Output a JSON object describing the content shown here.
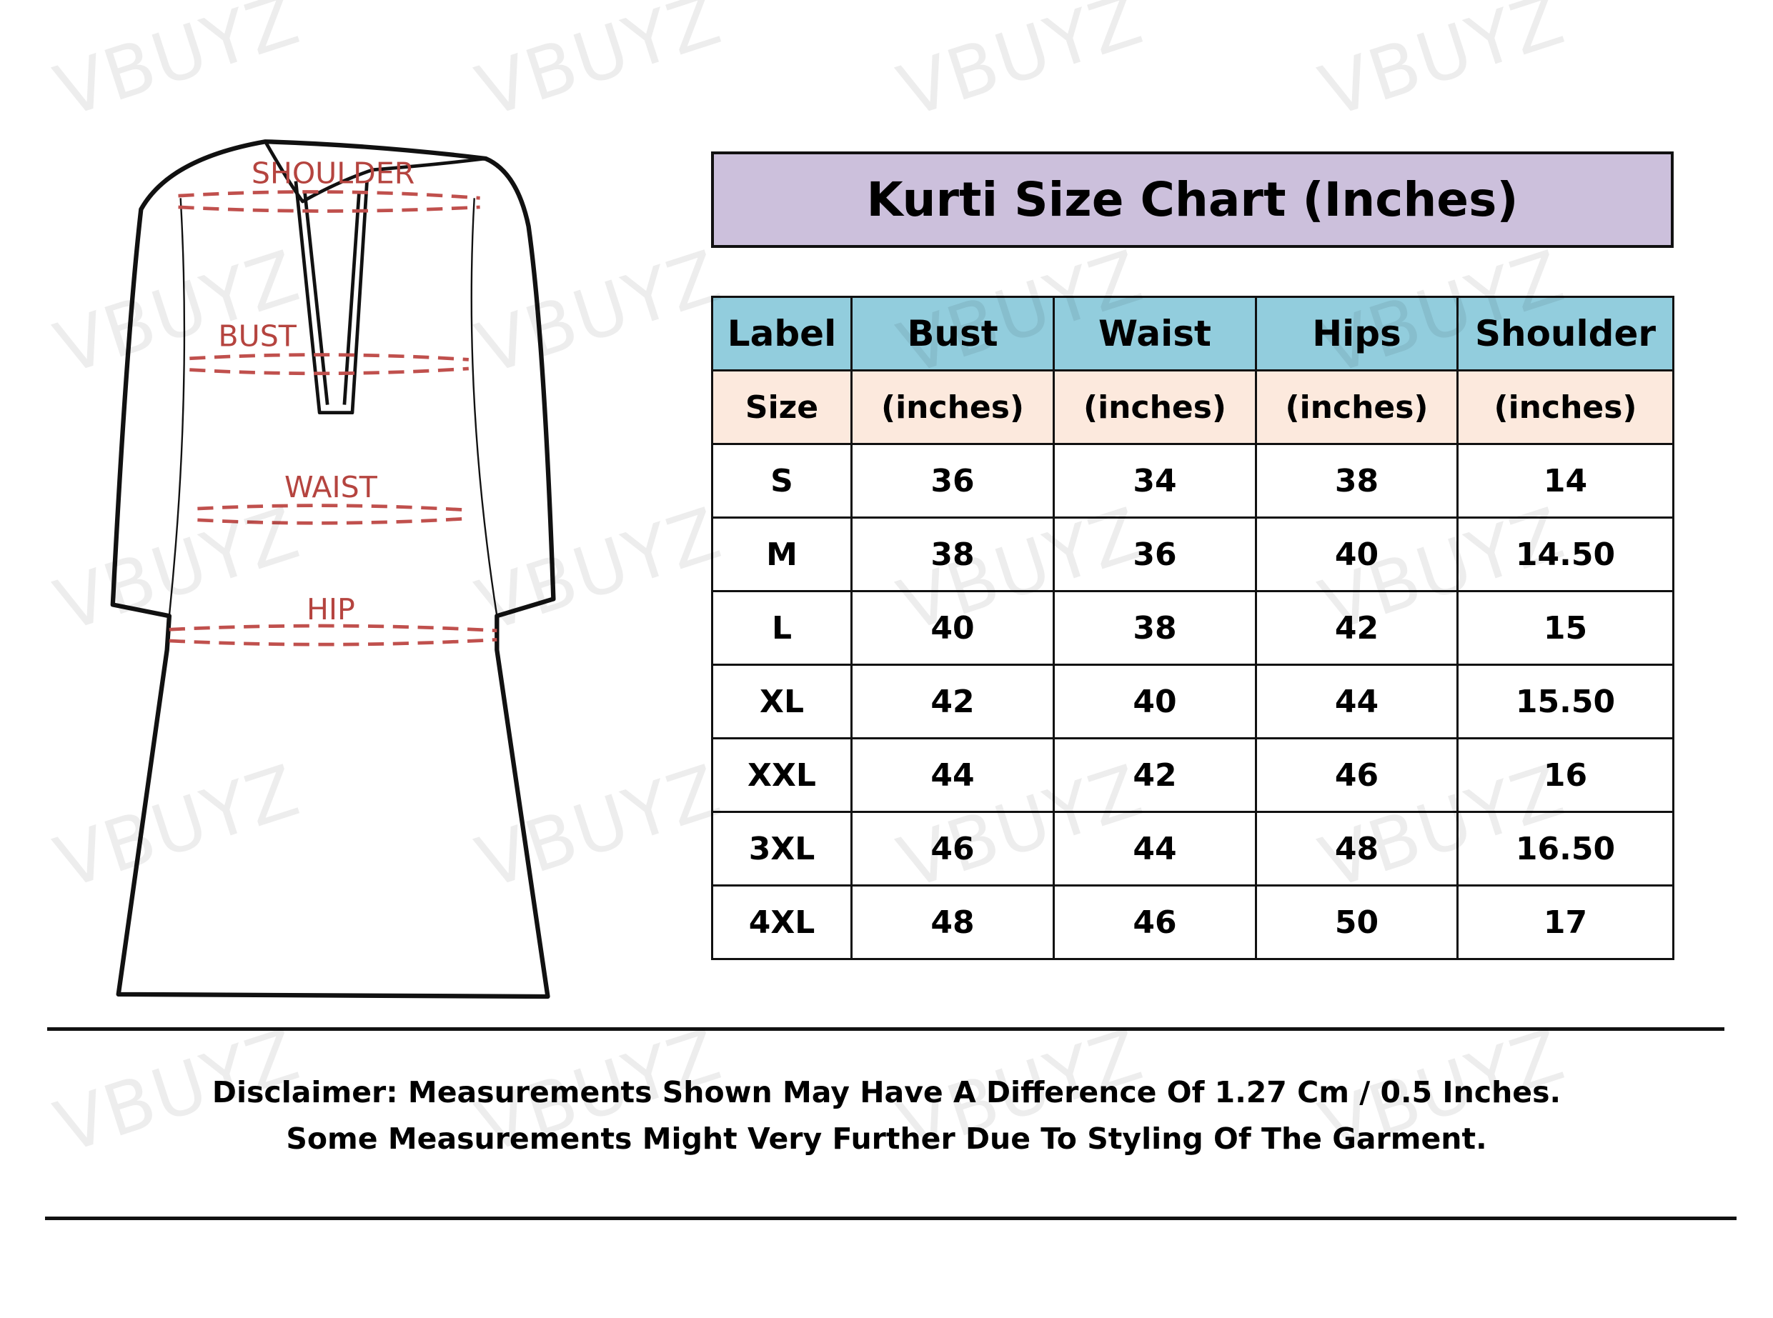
{
  "watermark": "VBUYZ",
  "diagram": {
    "labels": {
      "shoulder": "SHOULDER",
      "bust": "BUST",
      "waist": "WAIST",
      "hip": "HIP"
    },
    "label_color": "#b5443f"
  },
  "title": "Kurti Size Chart (Inches)",
  "colors": {
    "title_bg": "#ccc0dc",
    "header_bg": "#92cddd",
    "subheader_bg": "#fce9dd"
  },
  "table": {
    "headers": [
      "Label",
      "Bust",
      "Waist",
      "Hips",
      "Shoulder"
    ],
    "subheaders": [
      "Size",
      "(inches)",
      "(inches)",
      "(inches)",
      "(inches)"
    ],
    "rows": [
      [
        "S",
        "36",
        "34",
        "38",
        "14"
      ],
      [
        "M",
        "38",
        "36",
        "40",
        "14.50"
      ],
      [
        "L",
        "40",
        "38",
        "42",
        "15"
      ],
      [
        "XL",
        "42",
        "40",
        "44",
        "15.50"
      ],
      [
        "XXL",
        "44",
        "42",
        "46",
        "16"
      ],
      [
        "3XL",
        "46",
        "44",
        "48",
        "16.50"
      ],
      [
        "4XL",
        "48",
        "46",
        "50",
        "17"
      ]
    ]
  },
  "disclaimer": {
    "line1": "Disclaimer: Measurements Shown May Have A Difference Of 1.27 Cm / 0.5 Inches.",
    "line2": "Some Measurements Might Very Further Due To Styling Of The Garment."
  }
}
